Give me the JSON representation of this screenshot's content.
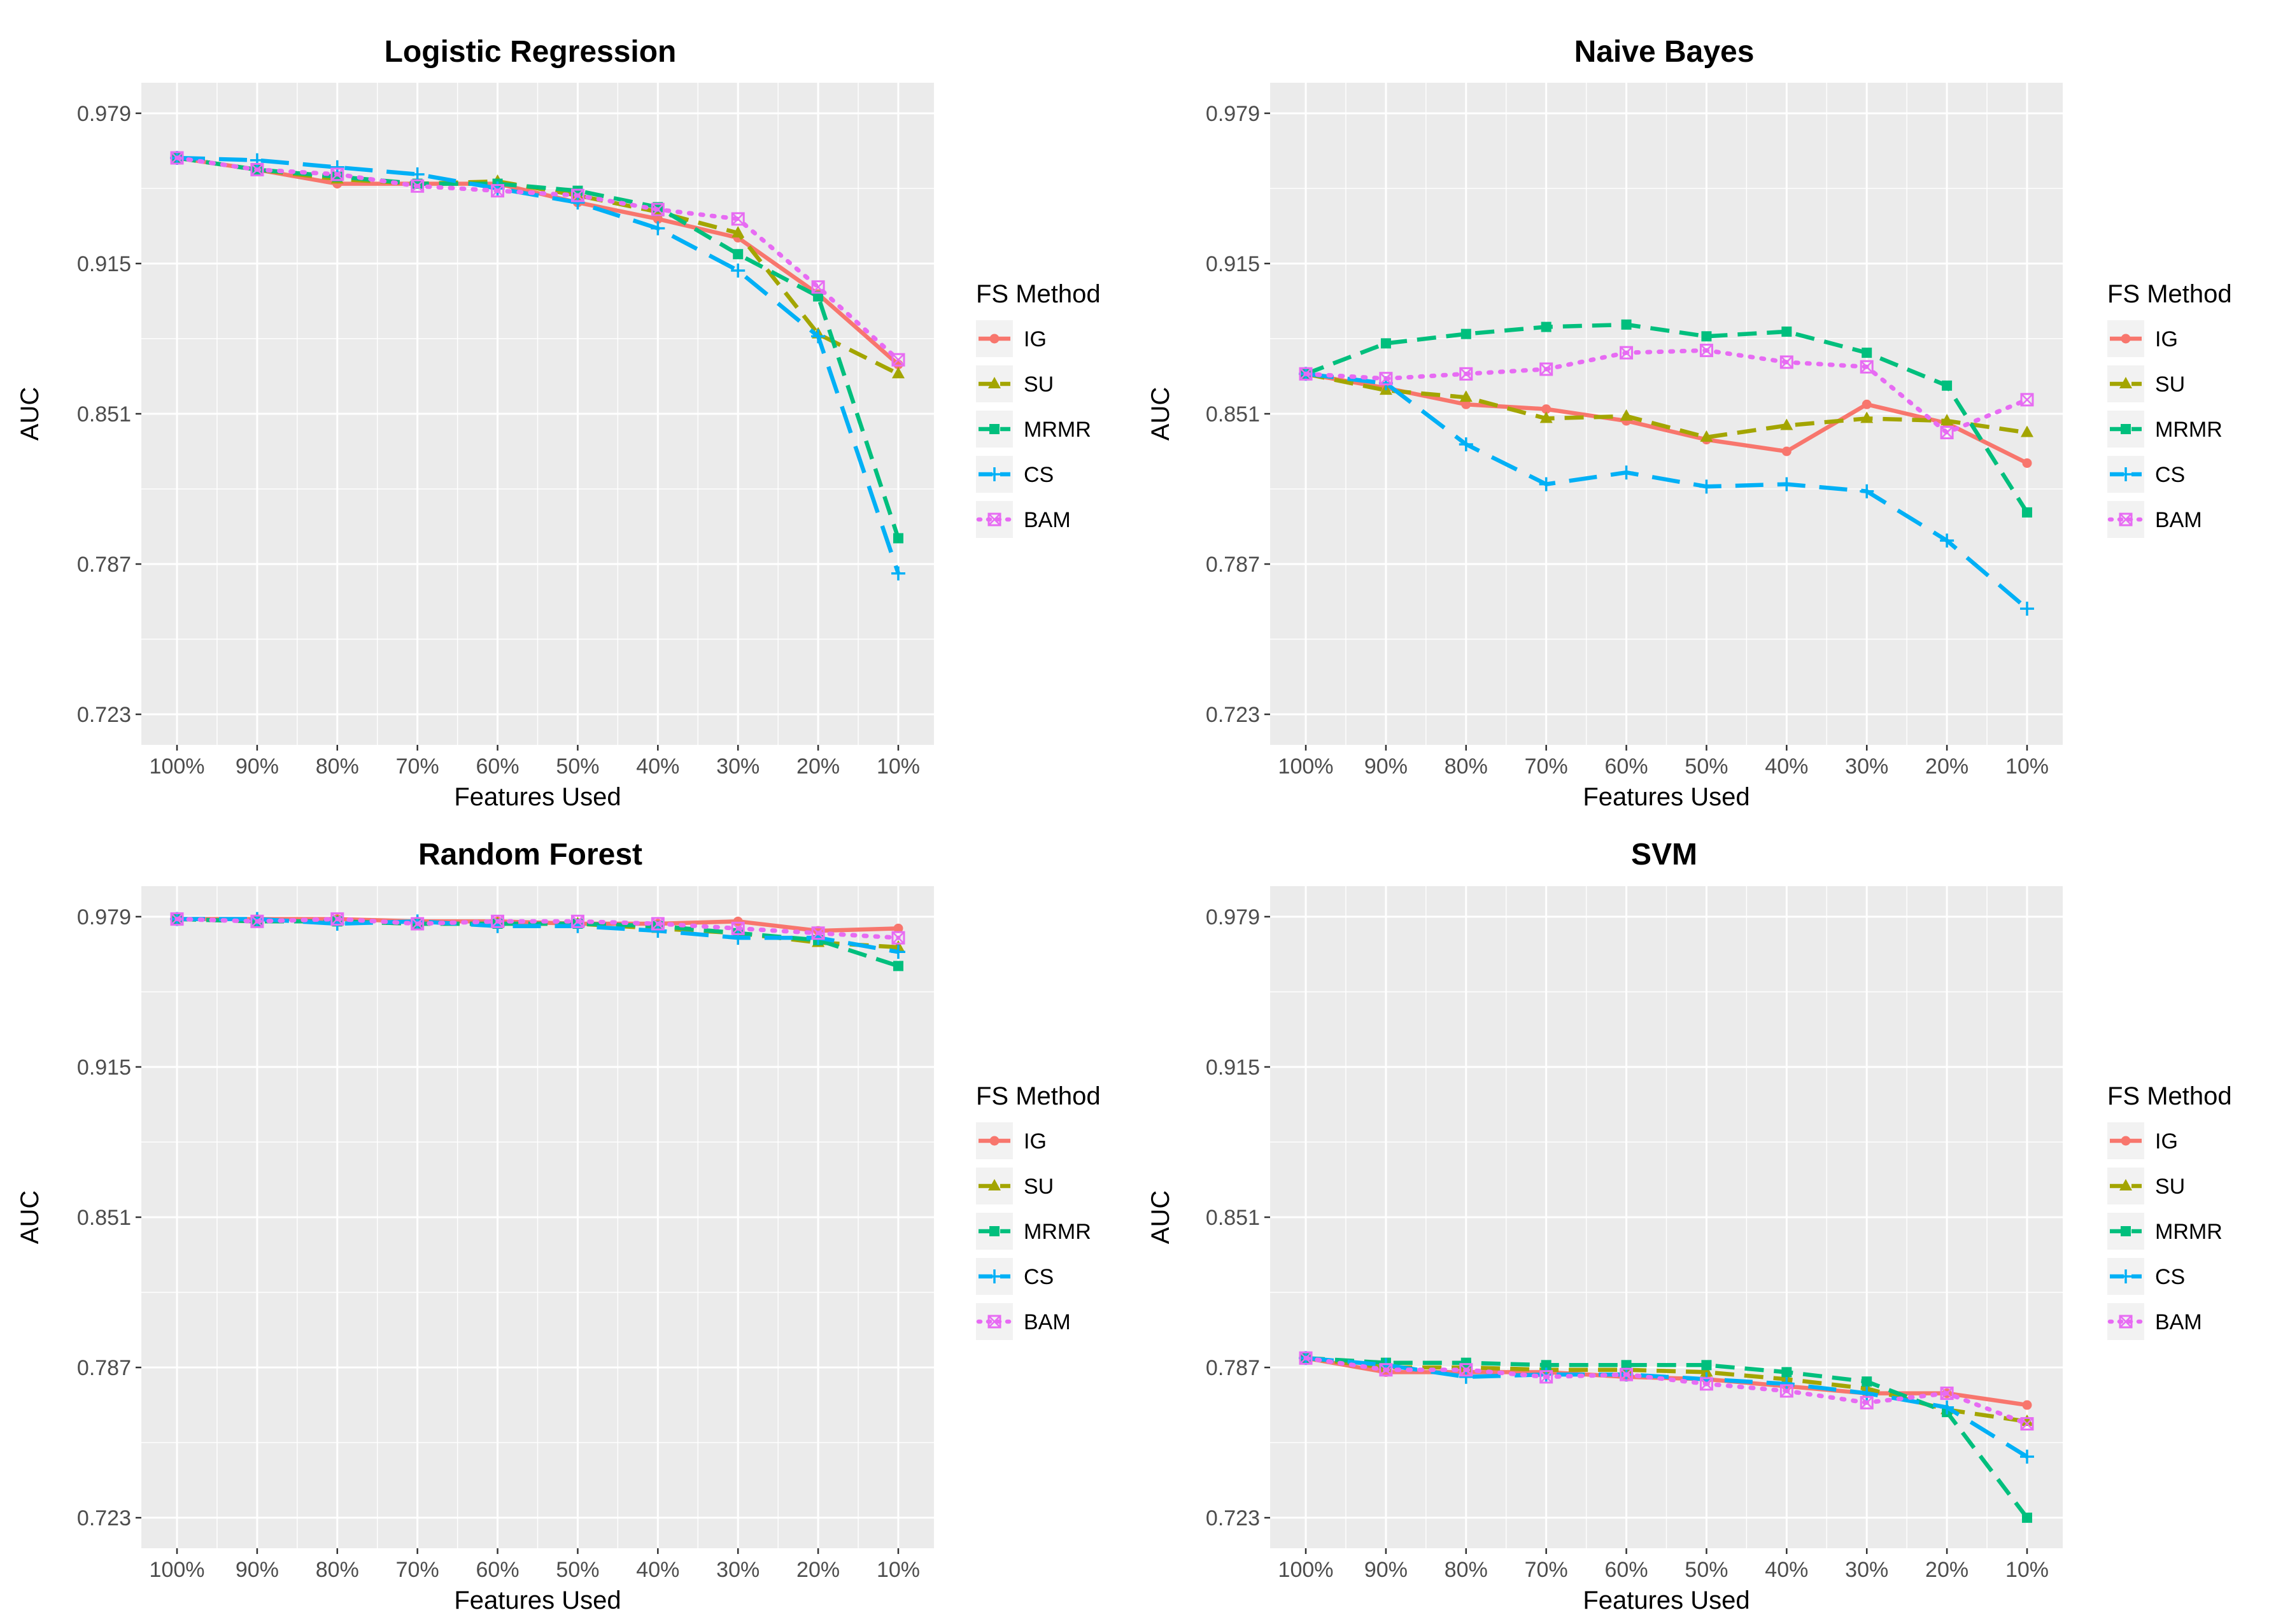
{
  "chart_data": [
    {
      "type": "line",
      "title": "Logistic Regression",
      "xlabel": "Features Used",
      "ylabel": "AUC",
      "categories": [
        "100%",
        "90%",
        "80%",
        "70%",
        "60%",
        "50%",
        "40%",
        "30%",
        "20%",
        "10%"
      ],
      "yticks": [
        "0.723",
        "0.787",
        "0.851",
        "0.915",
        "0.979"
      ],
      "ylim": [
        0.71,
        0.992
      ],
      "legend_title": "FS Method",
      "series": [
        {
          "name": "IG",
          "values": [
            0.96,
            0.955,
            0.949,
            0.949,
            0.949,
            0.941,
            0.934,
            0.926,
            0.902,
            0.872
          ]
        },
        {
          "name": "SU",
          "values": [
            0.96,
            0.955,
            0.951,
            0.949,
            0.95,
            0.944,
            0.937,
            0.928,
            0.885,
            0.868
          ]
        },
        {
          "name": "MRMR",
          "values": [
            0.96,
            0.955,
            0.952,
            0.949,
            0.949,
            0.946,
            0.939,
            0.919,
            0.901,
            0.798
          ]
        },
        {
          "name": "CS",
          "values": [
            0.96,
            0.959,
            0.956,
            0.953,
            0.947,
            0.941,
            0.93,
            0.912,
            0.884,
            0.783
          ]
        },
        {
          "name": "BAM",
          "values": [
            0.96,
            0.955,
            0.953,
            0.948,
            0.946,
            0.944,
            0.938,
            0.934,
            0.905,
            0.874
          ]
        }
      ]
    },
    {
      "type": "line",
      "title": "Naive Bayes",
      "xlabel": "Features Used",
      "ylabel": "AUC",
      "categories": [
        "100%",
        "90%",
        "80%",
        "70%",
        "60%",
        "50%",
        "40%",
        "30%",
        "20%",
        "10%"
      ],
      "yticks": [
        "0.723",
        "0.787",
        "0.851",
        "0.915",
        "0.979"
      ],
      "ylim": [
        0.71,
        0.992
      ],
      "legend_title": "FS Method",
      "series": [
        {
          "name": "IG",
          "values": [
            0.868,
            0.862,
            0.855,
            0.853,
            0.848,
            0.84,
            0.835,
            0.855,
            0.847,
            0.83
          ]
        },
        {
          "name": "SU",
          "values": [
            0.868,
            0.861,
            0.858,
            0.849,
            0.85,
            0.841,
            0.846,
            0.849,
            0.848,
            0.843
          ]
        },
        {
          "name": "MRMR",
          "values": [
            0.868,
            0.881,
            0.885,
            0.888,
            0.889,
            0.884,
            0.886,
            0.877,
            0.863,
            0.809
          ]
        },
        {
          "name": "CS",
          "values": [
            0.868,
            0.864,
            0.838,
            0.821,
            0.826,
            0.82,
            0.821,
            0.818,
            0.797,
            0.768
          ]
        },
        {
          "name": "BAM",
          "values": [
            0.868,
            0.866,
            0.868,
            0.87,
            0.877,
            0.878,
            0.873,
            0.871,
            0.843,
            0.857
          ]
        }
      ]
    },
    {
      "type": "line",
      "title": "Random Forest",
      "xlabel": "Features Used",
      "ylabel": "AUC",
      "categories": [
        "100%",
        "90%",
        "80%",
        "70%",
        "60%",
        "50%",
        "40%",
        "30%",
        "20%",
        "10%"
      ],
      "yticks": [
        "0.723",
        "0.787",
        "0.851",
        "0.915",
        "0.979"
      ],
      "ylim": [
        0.71,
        0.992
      ],
      "legend_title": "FS Method",
      "series": [
        {
          "name": "IG",
          "values": [
            0.978,
            0.978,
            0.978,
            0.977,
            0.977,
            0.976,
            0.976,
            0.977,
            0.973,
            0.974
          ]
        },
        {
          "name": "SU",
          "values": [
            0.978,
            0.977,
            0.977,
            0.976,
            0.976,
            0.976,
            0.974,
            0.972,
            0.968,
            0.966
          ]
        },
        {
          "name": "MRMR",
          "values": [
            0.978,
            0.977,
            0.977,
            0.976,
            0.976,
            0.976,
            0.975,
            0.972,
            0.969,
            0.958
          ]
        },
        {
          "name": "CS",
          "values": [
            0.978,
            0.978,
            0.976,
            0.977,
            0.975,
            0.975,
            0.973,
            0.97,
            0.97,
            0.964
          ]
        },
        {
          "name": "BAM",
          "values": [
            0.978,
            0.977,
            0.978,
            0.976,
            0.977,
            0.977,
            0.976,
            0.974,
            0.972,
            0.97
          ]
        }
      ]
    },
    {
      "type": "line",
      "title": "SVM",
      "xlabel": "Features Used",
      "ylabel": "AUC",
      "categories": [
        "100%",
        "90%",
        "80%",
        "70%",
        "60%",
        "50%",
        "40%",
        "30%",
        "20%",
        "10%"
      ],
      "yticks": [
        "0.723",
        "0.787",
        "0.851",
        "0.915",
        "0.979"
      ],
      "ylim": [
        0.71,
        0.992
      ],
      "legend_title": "FS Method",
      "series": [
        {
          "name": "IG",
          "values": [
            0.791,
            0.785,
            0.785,
            0.785,
            0.783,
            0.782,
            0.779,
            0.776,
            0.776,
            0.771
          ]
        },
        {
          "name": "SU",
          "values": [
            0.791,
            0.787,
            0.787,
            0.786,
            0.786,
            0.785,
            0.782,
            0.778,
            0.769,
            0.764
          ]
        },
        {
          "name": "MRMR",
          "values": [
            0.791,
            0.789,
            0.789,
            0.788,
            0.788,
            0.788,
            0.785,
            0.781,
            0.768,
            0.723
          ]
        },
        {
          "name": "CS",
          "values": [
            0.791,
            0.788,
            0.783,
            0.784,
            0.784,
            0.782,
            0.78,
            0.776,
            0.77,
            0.749
          ]
        },
        {
          "name": "BAM",
          "values": [
            0.791,
            0.786,
            0.786,
            0.783,
            0.784,
            0.78,
            0.777,
            0.772,
            0.776,
            0.763
          ]
        }
      ]
    }
  ],
  "series_styles": [
    {
      "name": "IG",
      "color": "#F8766D",
      "dash": "solid",
      "marker": "circle"
    },
    {
      "name": "SU",
      "color": "#A3A500",
      "dash": "dashed",
      "marker": "triangle"
    },
    {
      "name": "MRMR",
      "color": "#00BF7D",
      "dash": "dashed",
      "marker": "square"
    },
    {
      "name": "CS",
      "color": "#00B0F6",
      "dash": "longdash",
      "marker": "plus"
    },
    {
      "name": "BAM",
      "color": "#E76BF3",
      "dash": "dotted",
      "marker": "boxx"
    }
  ]
}
